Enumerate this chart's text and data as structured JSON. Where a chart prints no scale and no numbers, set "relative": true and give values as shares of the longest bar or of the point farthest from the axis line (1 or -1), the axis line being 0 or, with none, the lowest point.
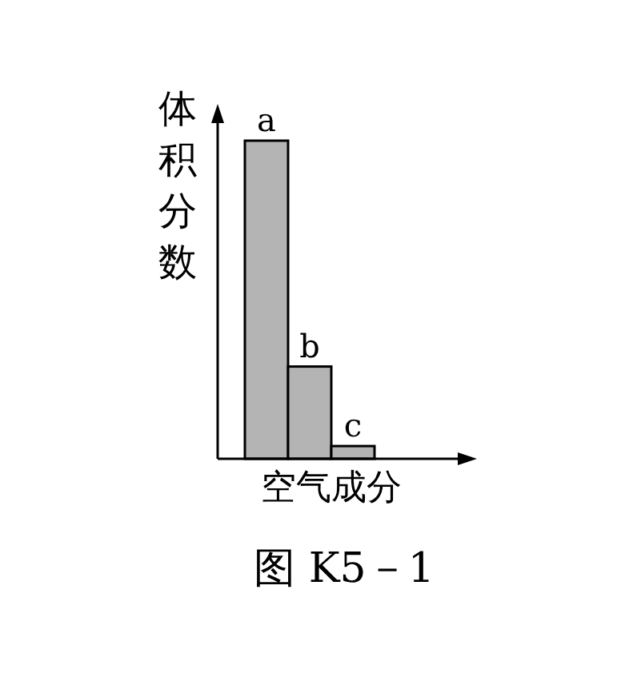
{
  "chart_data": {
    "type": "bar",
    "relative": true,
    "categories": [
      "a",
      "b",
      "c"
    ],
    "values": [
      1,
      0.29,
      0.04
    ],
    "color": "#b4b4b4",
    "xlabel": "空气成分",
    "ylabel": "体积分数",
    "annotations": [
      "图 K5－1"
    ]
  }
}
